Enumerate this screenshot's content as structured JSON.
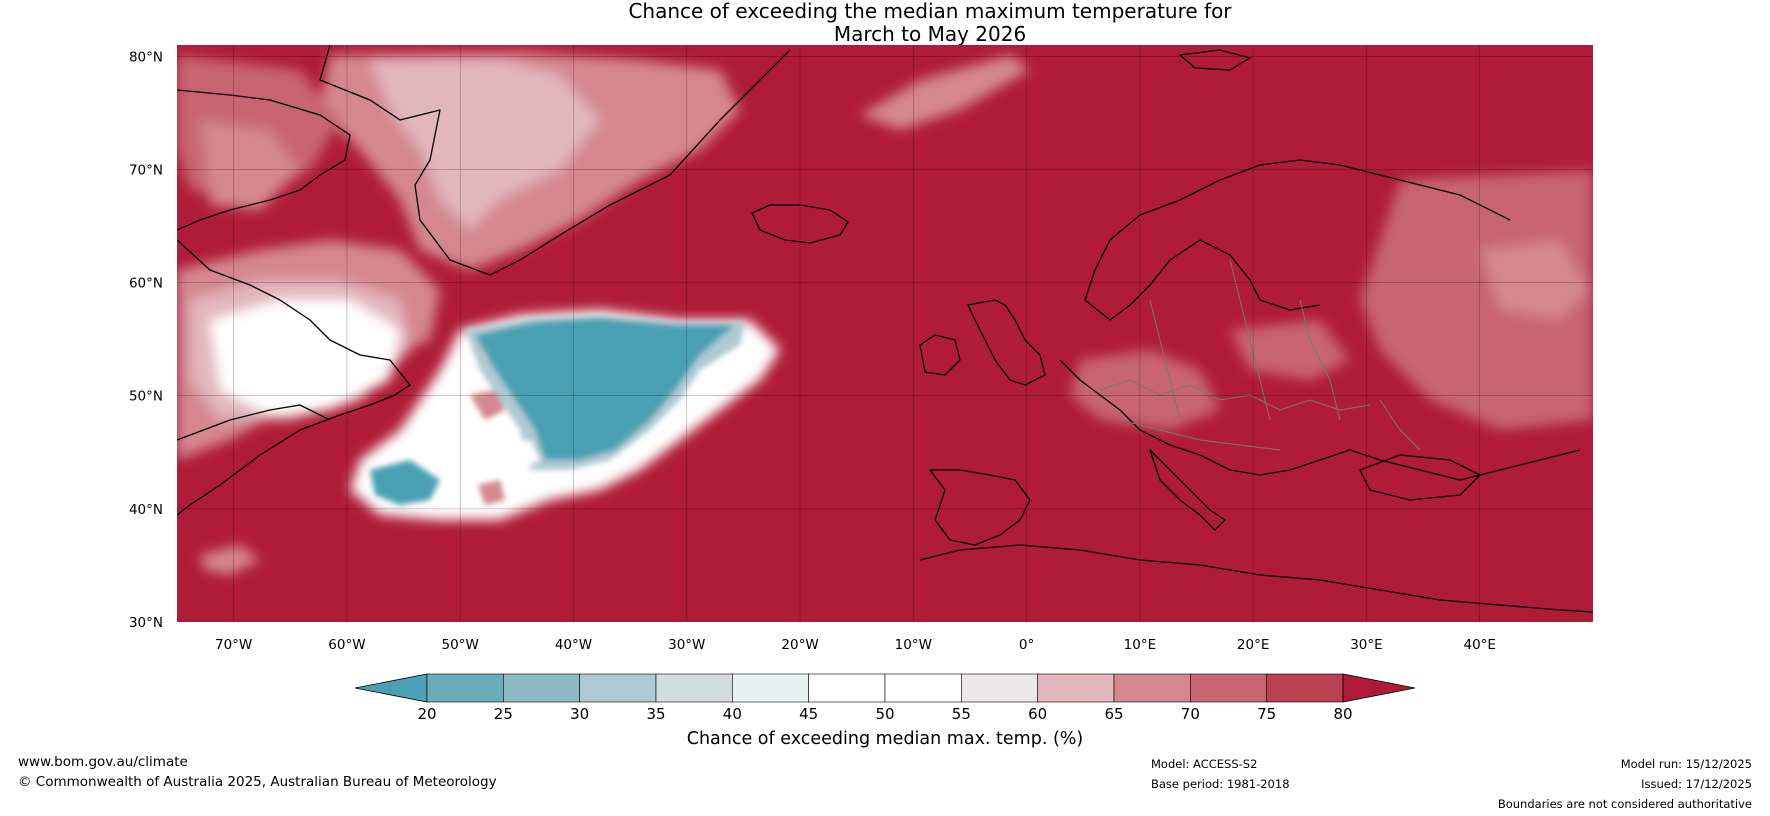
{
  "title": {
    "line1": "Chance of exceeding the median maximum temperature for",
    "line2": "March to May 2026"
  },
  "map": {
    "lat_labels": [
      "80°N",
      "70°N",
      "60°N",
      "50°N",
      "40°N",
      "30°N"
    ],
    "lon_labels": [
      "70°W",
      "60°W",
      "50°W",
      "40°W",
      "30°W",
      "20°W",
      "10°W",
      "0°",
      "10°E",
      "20°E",
      "30°E",
      "40°E"
    ],
    "colors": {
      "ocean_warm": "#b01c37",
      "cool_deep": "#4aa0b2",
      "coast": "#000000",
      "borders": "#777777"
    }
  },
  "colorbar": {
    "ticks": [
      "20",
      "25",
      "30",
      "35",
      "40",
      "45",
      "50",
      "55",
      "60",
      "65",
      "70",
      "75",
      "80"
    ],
    "colors": [
      "#4aa0b2",
      "#6aacba",
      "#8bbac6",
      "#aecad2",
      "#d1dcdd",
      "#e9f0f1",
      "#ffffff",
      "#ffffff",
      "#ece8e9",
      "#e2b6bd",
      "#d4878f",
      "#c76570",
      "#b94252",
      "#b01c37"
    ],
    "label": "Chance of exceeding median max. temp. (%)"
  },
  "footer": {
    "website": "www.bom.gov.au/climate",
    "copyright": "© Commonwealth of Australia 2025, Australian Bureau of Meteorology",
    "model": "Model: ACCESS-S2",
    "base_period": "Base period: 1981-2018",
    "model_run": "Model run: 15/12/2025",
    "issued": "Issued: 17/12/2025",
    "disclaimer": "Boundaries are not considered authoritative"
  }
}
